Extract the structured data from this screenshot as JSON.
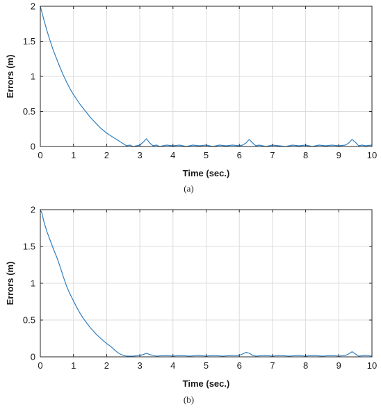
{
  "chart_data": [
    {
      "type": "line",
      "caption": "(a)",
      "xlabel": "Time (sec.)",
      "ylabel": "Errors (m)",
      "xlim": [
        0,
        10
      ],
      "ylim": [
        0,
        2
      ],
      "xticks": [
        0,
        1,
        2,
        3,
        4,
        5,
        6,
        7,
        8,
        9,
        10
      ],
      "yticks": [
        0,
        0.5,
        1,
        1.5,
        2
      ],
      "grid": true,
      "series": [
        {
          "color": "#2f7fc1",
          "x": [
            0,
            0.1,
            0.2,
            0.3,
            0.4,
            0.5,
            0.6,
            0.7,
            0.8,
            0.9,
            1.0,
            1.1,
            1.2,
            1.3,
            1.4,
            1.5,
            1.6,
            1.7,
            1.8,
            1.9,
            2.0,
            2.1,
            2.2,
            2.3,
            2.4,
            2.5,
            2.6,
            2.7,
            2.8,
            2.9,
            3.0,
            3.1,
            3.2,
            3.3,
            3.4,
            3.5,
            3.6,
            3.8,
            4.0,
            4.2,
            4.4,
            4.6,
            4.8,
            5.0,
            5.2,
            5.4,
            5.6,
            5.8,
            6.0,
            6.1,
            6.2,
            6.3,
            6.4,
            6.5,
            6.6,
            6.8,
            7.0,
            7.2,
            7.4,
            7.6,
            7.8,
            8.0,
            8.2,
            8.4,
            8.6,
            8.8,
            9.0,
            9.2,
            9.3,
            9.4,
            9.5,
            9.6,
            9.7,
            9.8,
            10.0
          ],
          "y": [
            2.0,
            1.82,
            1.65,
            1.5,
            1.36,
            1.24,
            1.12,
            1.01,
            0.91,
            0.82,
            0.74,
            0.67,
            0.6,
            0.54,
            0.48,
            0.42,
            0.37,
            0.32,
            0.27,
            0.23,
            0.19,
            0.16,
            0.13,
            0.1,
            0.07,
            0.04,
            0.01,
            0.02,
            0.0,
            0.01,
            0.02,
            0.06,
            0.11,
            0.05,
            0.01,
            0.02,
            0.0,
            0.02,
            0.01,
            0.02,
            0.0,
            0.02,
            0.01,
            0.02,
            0.0,
            0.02,
            0.01,
            0.02,
            0.01,
            0.02,
            0.05,
            0.1,
            0.05,
            0.01,
            0.02,
            0.0,
            0.02,
            0.01,
            0.0,
            0.02,
            0.01,
            0.02,
            0.0,
            0.02,
            0.01,
            0.02,
            0.01,
            0.02,
            0.05,
            0.1,
            0.06,
            0.01,
            0.02,
            0.01,
            0.02
          ]
        }
      ]
    },
    {
      "type": "line",
      "caption": "(b)",
      "xlabel": "Time (sec.)",
      "ylabel": "Errors (m)",
      "xlim": [
        0,
        10
      ],
      "ylim": [
        0,
        2
      ],
      "xticks": [
        0,
        1,
        2,
        3,
        4,
        5,
        6,
        7,
        8,
        9,
        10
      ],
      "yticks": [
        0,
        0.5,
        1,
        1.5,
        2
      ],
      "grid": true,
      "series": [
        {
          "color": "#2f7fc1",
          "x": [
            0,
            0.05,
            0.1,
            0.2,
            0.3,
            0.4,
            0.5,
            0.6,
            0.7,
            0.8,
            0.9,
            1.0,
            1.1,
            1.2,
            1.3,
            1.4,
            1.5,
            1.6,
            1.7,
            1.8,
            1.9,
            2.0,
            2.1,
            2.2,
            2.3,
            2.4,
            2.5,
            2.6,
            2.8,
            3.0,
            3.1,
            3.2,
            3.3,
            3.5,
            3.8,
            4.0,
            4.2,
            4.5,
            4.8,
            5.0,
            5.2,
            5.5,
            5.8,
            6.0,
            6.1,
            6.2,
            6.3,
            6.4,
            6.5,
            6.8,
            7.0,
            7.2,
            7.5,
            7.8,
            8.0,
            8.2,
            8.5,
            8.8,
            9.0,
            9.2,
            9.3,
            9.4,
            9.5,
            9.6,
            9.8,
            10.0
          ],
          "y": [
            2.0,
            1.95,
            1.85,
            1.7,
            1.58,
            1.46,
            1.35,
            1.22,
            1.08,
            0.95,
            0.85,
            0.76,
            0.67,
            0.59,
            0.52,
            0.46,
            0.4,
            0.35,
            0.3,
            0.26,
            0.22,
            0.18,
            0.15,
            0.11,
            0.07,
            0.04,
            0.02,
            0.01,
            0.01,
            0.02,
            0.03,
            0.05,
            0.03,
            0.01,
            0.02,
            0.01,
            0.02,
            0.01,
            0.02,
            0.01,
            0.02,
            0.01,
            0.02,
            0.02,
            0.04,
            0.06,
            0.05,
            0.02,
            0.01,
            0.02,
            0.01,
            0.02,
            0.01,
            0.02,
            0.01,
            0.02,
            0.01,
            0.02,
            0.01,
            0.02,
            0.04,
            0.07,
            0.04,
            0.01,
            0.02,
            0.01
          ]
        }
      ]
    }
  ]
}
